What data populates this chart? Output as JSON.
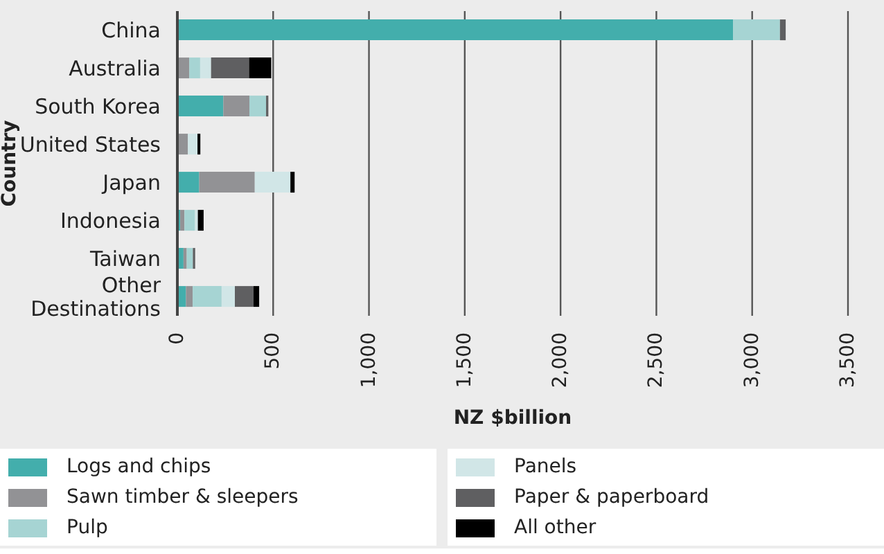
{
  "chart_data": {
    "type": "bar",
    "orientation": "horizontal",
    "stacked": true,
    "xlabel": "NZ $billion",
    "ylabel": "Country",
    "categories": [
      "China",
      "Australia",
      "South Korea",
      "United States",
      "Japan",
      "Indonesia",
      "Taiwan",
      "Other Destinations"
    ],
    "series": [
      {
        "name": "Logs and chips",
        "color": "#43aeac",
        "values": [
          2900,
          0,
          240,
          0,
          114,
          15,
          32,
          45
        ]
      },
      {
        "name": "Sawn timber & sleepers",
        "color": "#929295",
        "values": [
          0,
          62,
          136,
          55,
          290,
          22,
          17,
          35
        ]
      },
      {
        "name": "Pulp",
        "color": "#a6d4d3",
        "values": [
          245,
          57,
          87,
          0,
          0,
          55,
          32,
          151
        ]
      },
      {
        "name": "Panels",
        "color": "#d1e6e7",
        "values": [
          0,
          57,
          0,
          50,
          186,
          15,
          0,
          69
        ]
      },
      {
        "name": "Paper & paperboard",
        "color": "#5f5f61",
        "values": [
          30,
          198,
          12,
          0,
          0,
          0,
          12,
          97
        ]
      },
      {
        "name": "All other",
        "color": "#000000",
        "values": [
          0,
          116,
          0,
          15,
          22,
          30,
          0,
          30
        ]
      }
    ],
    "xlim": [
      0,
      3500
    ],
    "xticks": [
      {
        "value": 0,
        "label": "0"
      },
      {
        "value": 500,
        "label": "500"
      },
      {
        "value": 1000,
        "label": "1,000"
      },
      {
        "value": 1500,
        "label": "1,500"
      },
      {
        "value": 2000,
        "label": "2,000"
      },
      {
        "value": 2500,
        "label": "2,500"
      },
      {
        "value": 3000,
        "label": "3,000"
      },
      {
        "value": 3500,
        "label": "3,500"
      }
    ],
    "grid": "x",
    "legend": "bottom"
  }
}
